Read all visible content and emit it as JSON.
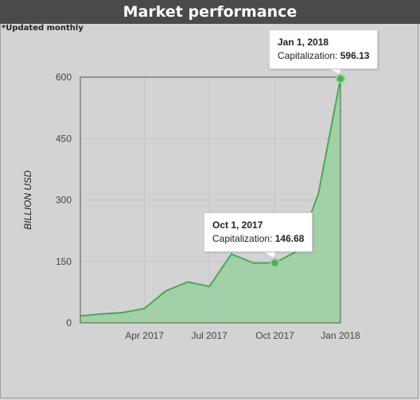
{
  "header": {
    "title": "Market performance"
  },
  "note": "*Updated monthly",
  "colors": {
    "line": "#3cb14a",
    "fill": "#9fd1a5",
    "marker": "#4caf50",
    "header_bg": "#4a4a4a",
    "background": "#d3d3d3"
  },
  "chart_data": {
    "type": "area",
    "title": "",
    "xlabel": "",
    "ylabel": "BILLION USD",
    "ylim": [
      0,
      600
    ],
    "yticks": [
      0,
      150,
      300,
      450,
      600
    ],
    "xticks": [
      {
        "date": "2017-04-01",
        "label": "Apr 2017"
      },
      {
        "date": "2017-07-01",
        "label": "Jul 2017"
      },
      {
        "date": "2017-10-01",
        "label": "Oct 2017"
      },
      {
        "date": "2018-01-01",
        "label": "Jan 2018"
      }
    ],
    "xlim": [
      "2017-01-01",
      "2018-01-01"
    ],
    "grid": true,
    "series": [
      {
        "x": [
          "2017-01-01",
          "2017-02-01",
          "2017-03-01",
          "2017-04-01",
          "2017-05-01",
          "2017-06-01",
          "2017-07-01",
          "2017-08-01",
          "2017-09-01",
          "2017-10-01",
          "2017-11-01",
          "2017-12-01",
          "2018-01-01"
        ],
        "values": [
          17,
          22,
          25,
          35,
          78,
          100,
          89,
          168,
          146,
          146.68,
          175,
          315,
          596.13
        ]
      }
    ],
    "tooltips": [
      {
        "date_label": "Jan 1, 2018",
        "value_label": "Capitalization:",
        "value": "596.13",
        "x": "2018-01-01",
        "y": 596.13
      },
      {
        "date_label": "Oct 1, 2017",
        "value_label": "Capitalization:",
        "value": "146.68",
        "x": "2017-10-01",
        "y": 146.68
      }
    ]
  }
}
